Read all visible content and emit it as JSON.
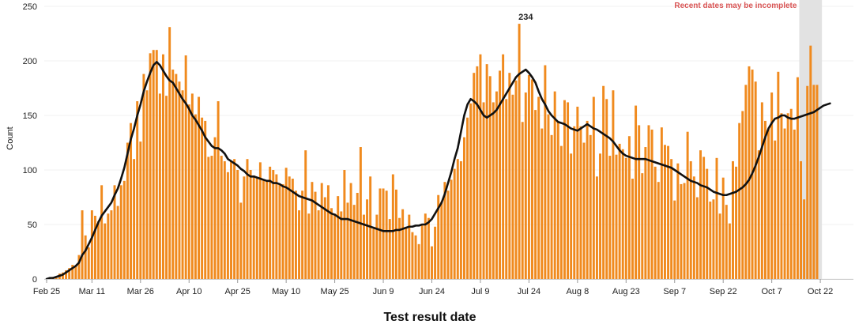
{
  "chart_data": {
    "type": "bar",
    "title": "",
    "xlabel": "Test result date",
    "ylabel": "Count",
    "ylim": [
      0,
      250
    ],
    "yticks": [
      0,
      50,
      100,
      150,
      200,
      250
    ],
    "grid": true,
    "xtick_labels": [
      "Feb 25",
      "Mar 11",
      "Mar 26",
      "Apr 10",
      "Apr 25",
      "May 10",
      "May 25",
      "Jun 9",
      "Jun 24",
      "Jul 9",
      "Jul 24",
      "Aug 8",
      "Aug 23",
      "Sep 7",
      "Sep 22",
      "Oct 7",
      "Oct 22"
    ],
    "xtick_indices": [
      0,
      14,
      29,
      44,
      59,
      74,
      89,
      104,
      119,
      134,
      149,
      164,
      179,
      194,
      209,
      224,
      239
    ],
    "shaded_region": {
      "start_index": 233,
      "end_index": 239,
      "label": "Recent dates may be incomplete",
      "color": "#e2e2e2"
    },
    "annotations": [
      {
        "text": "234",
        "index": 148,
        "value": 234
      }
    ],
    "bar_color": "#f08a1e",
    "line_color": "#111111",
    "series": [
      {
        "type": "bar",
        "values": [
          0,
          1,
          2,
          1,
          5,
          6,
          8,
          10,
          13,
          12,
          22,
          63,
          40,
          29,
          63,
          58,
          53,
          86,
          51,
          60,
          63,
          86,
          67,
          86,
          90,
          125,
          143,
          110,
          163,
          126,
          188,
          173,
          207,
          210,
          210,
          170,
          206,
          168,
          231,
          192,
          188,
          181,
          173,
          205,
          160,
          170,
          151,
          167,
          148,
          145,
          112,
          113,
          130,
          163,
          113,
          108,
          98,
          108,
          110,
          100,
          70,
          94,
          110,
          100,
          95,
          93,
          107,
          91,
          91,
          103,
          100,
          96,
          87,
          87,
          102,
          94,
          92,
          81,
          63,
          81,
          118,
          60,
          89,
          80,
          63,
          88,
          75,
          86,
          65,
          60,
          76,
          62,
          100,
          70,
          88,
          68,
          79,
          121,
          59,
          73,
          94,
          46,
          59,
          83,
          83,
          81,
          55,
          96,
          82,
          56,
          64,
          47,
          59,
          43,
          40,
          32,
          50,
          60,
          56,
          30,
          48,
          77,
          71,
          89,
          81,
          91,
          101,
          110,
          108,
          130,
          148,
          161,
          189,
          195,
          206,
          162,
          197,
          186,
          162,
          172,
          191,
          206,
          165,
          189,
          169,
          182,
          234,
          144,
          171,
          187,
          183,
          155,
          167,
          138,
          196,
          151,
          132,
          172,
          144,
          122,
          164,
          162,
          115,
          140,
          158,
          140,
          125,
          145,
          132,
          167,
          94,
          115,
          177,
          165,
          113,
          173,
          114,
          124,
          119,
          111,
          131,
          92,
          159,
          141,
          97,
          121,
          141,
          137,
          103,
          89,
          139,
          123,
          122,
          110,
          72,
          106,
          87,
          88,
          135,
          108,
          94,
          75,
          118,
          112,
          101,
          71,
          73,
          111,
          60,
          93,
          68,
          51,
          108,
          103,
          143,
          154,
          178,
          195,
          192,
          181,
          118,
          162,
          145,
          138,
          171,
          127,
          190,
          152,
          138,
          152,
          156,
          137,
          185,
          108,
          73,
          177,
          214,
          178,
          178
        ]
      },
      {
        "type": "line",
        "name": "",
        "values": [
          0,
          1,
          1,
          2,
          3,
          4,
          6,
          8,
          10,
          12,
          15,
          22,
          26,
          32,
          38,
          45,
          52,
          58,
          62,
          66,
          70,
          77,
          83,
          92,
          102,
          115,
          128,
          138,
          150,
          160,
          172,
          181,
          189,
          196,
          199,
          196,
          191,
          186,
          182,
          180,
          175,
          170,
          165,
          161,
          156,
          150,
          146,
          141,
          136,
          130,
          126,
          122,
          120,
          120,
          118,
          115,
          110,
          108,
          106,
          104,
          101,
          99,
          96,
          94,
          94,
          93,
          92,
          91,
          90,
          90,
          88,
          88,
          87,
          85,
          84,
          82,
          80,
          78,
          76,
          75,
          74,
          73,
          72,
          70,
          68,
          66,
          64,
          62,
          60,
          59,
          57,
          55,
          55,
          55,
          54,
          53,
          52,
          51,
          50,
          49,
          48,
          47,
          46,
          45,
          44,
          44,
          44,
          44,
          45,
          45,
          46,
          47,
          48,
          48,
          49,
          49,
          50,
          50,
          52,
          55,
          60,
          65,
          70,
          78,
          88,
          98,
          110,
          120,
          135,
          150,
          160,
          165,
          163,
          160,
          155,
          150,
          148,
          150,
          152,
          155,
          160,
          165,
          170,
          175,
          180,
          185,
          188,
          190,
          192,
          189,
          185,
          180,
          172,
          165,
          160,
          154,
          150,
          147,
          144,
          143,
          142,
          140,
          138,
          137,
          136,
          138,
          140,
          142,
          140,
          138,
          137,
          135,
          133,
          131,
          129,
          126,
          122,
          118,
          115,
          113,
          112,
          111,
          110,
          110,
          110,
          110,
          109,
          108,
          107,
          106,
          105,
          104,
          103,
          102,
          100,
          98,
          96,
          94,
          92,
          90,
          89,
          88,
          86,
          85,
          84,
          82,
          80,
          79,
          78,
          77,
          77,
          78,
          79,
          80,
          82,
          84,
          87,
          91,
          97,
          104,
          112,
          121,
          130,
          138,
          143,
          147,
          148,
          150,
          150,
          148,
          147,
          147,
          148,
          149,
          150,
          151,
          152,
          153,
          155,
          157,
          159,
          160,
          161
        ]
      }
    ]
  }
}
